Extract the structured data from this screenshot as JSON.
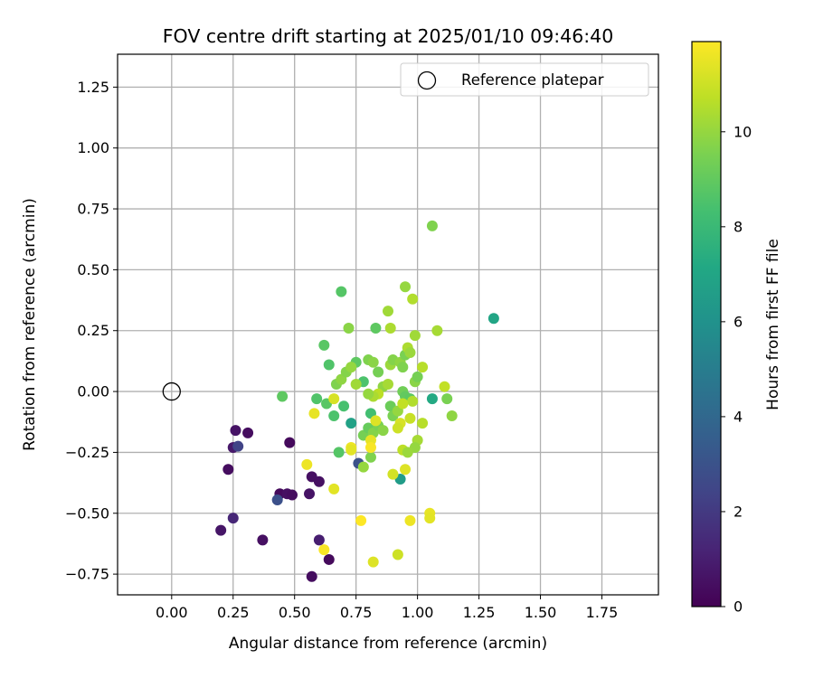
{
  "chart_data": {
    "type": "scatter",
    "title": "FOV centre drift starting at 2025/01/10 09:46:40",
    "xlabel": "Angular distance from reference (arcmin)",
    "ylabel": "Rotation from reference (arcmin)",
    "xlim": [
      -0.22,
      1.98
    ],
    "ylim": [
      -0.835,
      1.385
    ],
    "x_ticks": [
      0.0,
      0.25,
      0.5,
      0.75,
      1.0,
      1.25,
      1.5,
      1.75
    ],
    "x_tick_labels": [
      "0.00",
      "0.25",
      "0.50",
      "0.75",
      "1.00",
      "1.25",
      "1.50",
      "1.75"
    ],
    "y_ticks": [
      -0.75,
      -0.5,
      -0.25,
      0.0,
      0.25,
      0.5,
      0.75,
      1.0,
      1.25
    ],
    "y_tick_labels": [
      "−0.75",
      "−0.50",
      "−0.25",
      "0.00",
      "0.25",
      "0.50",
      "0.75",
      "1.00",
      "1.25"
    ],
    "grid": true,
    "legend_position": "top-right",
    "legend": [
      {
        "label": "Reference platepar",
        "marker": "open-circle"
      }
    ],
    "reference_point": {
      "x": 0.0,
      "y": 0.0
    },
    "colorbar": {
      "label": "Hours from first FF file",
      "colormap": "viridis",
      "range": [
        0,
        11.9
      ],
      "ticks": [
        0,
        2,
        4,
        6,
        8,
        10
      ],
      "tick_labels": [
        "0",
        "2",
        "4",
        "6",
        "8",
        "10"
      ]
    },
    "points": [
      {
        "x": 0.57,
        "y": -0.76,
        "c": 0.4
      },
      {
        "x": 0.64,
        "y": -0.69,
        "c": 0.3
      },
      {
        "x": 0.2,
        "y": -0.57,
        "c": 0.7
      },
      {
        "x": 0.37,
        "y": -0.61,
        "c": 0.5
      },
      {
        "x": 0.6,
        "y": -0.61,
        "c": 1.0
      },
      {
        "x": 0.25,
        "y": -0.52,
        "c": 1.3
      },
      {
        "x": 0.23,
        "y": -0.32,
        "c": 0.4
      },
      {
        "x": 0.25,
        "y": -0.23,
        "c": 0.8
      },
      {
        "x": 0.27,
        "y": -0.225,
        "c": 2.4
      },
      {
        "x": 0.26,
        "y": -0.16,
        "c": 0.6
      },
      {
        "x": 0.31,
        "y": -0.17,
        "c": 0.4
      },
      {
        "x": 0.48,
        "y": -0.21,
        "c": 0.3
      },
      {
        "x": 0.44,
        "y": -0.42,
        "c": 0.3
      },
      {
        "x": 0.47,
        "y": -0.42,
        "c": 0.5
      },
      {
        "x": 0.49,
        "y": -0.425,
        "c": 0.4
      },
      {
        "x": 0.43,
        "y": -0.445,
        "c": 2.9
      },
      {
        "x": 0.56,
        "y": -0.42,
        "c": 0.6
      },
      {
        "x": 0.57,
        "y": -0.35,
        "c": 0.5
      },
      {
        "x": 0.6,
        "y": -0.37,
        "c": 0.5
      },
      {
        "x": 0.76,
        "y": -0.295,
        "c": 3.0
      },
      {
        "x": 0.93,
        "y": -0.36,
        "c": 6.5
      },
      {
        "x": 0.73,
        "y": -0.13,
        "c": 6.8
      },
      {
        "x": 1.06,
        "y": -0.03,
        "c": 7.2
      },
      {
        "x": 1.31,
        "y": 0.3,
        "c": 7.0
      },
      {
        "x": 0.45,
        "y": -0.02,
        "c": 8.9
      },
      {
        "x": 0.59,
        "y": -0.03,
        "c": 8.6
      },
      {
        "x": 0.63,
        "y": -0.05,
        "c": 8.8
      },
      {
        "x": 0.66,
        "y": -0.1,
        "c": 8.5
      },
      {
        "x": 0.7,
        "y": -0.06,
        "c": 8.4
      },
      {
        "x": 0.68,
        "y": -0.25,
        "c": 8.7
      },
      {
        "x": 0.62,
        "y": 0.19,
        "c": 8.8
      },
      {
        "x": 0.64,
        "y": 0.11,
        "c": 8.6
      },
      {
        "x": 0.69,
        "y": 0.41,
        "c": 8.7
      },
      {
        "x": 0.75,
        "y": 0.12,
        "c": 8.9
      },
      {
        "x": 0.78,
        "y": 0.04,
        "c": 8.5
      },
      {
        "x": 0.81,
        "y": -0.09,
        "c": 8.3
      },
      {
        "x": 0.83,
        "y": 0.26,
        "c": 8.9
      },
      {
        "x": 0.81,
        "y": -0.27,
        "c": 9.6
      },
      {
        "x": 0.78,
        "y": -0.31,
        "c": 10.0
      },
      {
        "x": 0.72,
        "y": 0.26,
        "c": 9.8
      },
      {
        "x": 0.67,
        "y": 0.03,
        "c": 9.6
      },
      {
        "x": 0.69,
        "y": 0.05,
        "c": 9.9
      },
      {
        "x": 0.71,
        "y": 0.08,
        "c": 9.7
      },
      {
        "x": 0.73,
        "y": 0.1,
        "c": 10.0
      },
      {
        "x": 0.75,
        "y": 0.03,
        "c": 10.2
      },
      {
        "x": 0.78,
        "y": -0.18,
        "c": 9.4
      },
      {
        "x": 0.8,
        "y": -0.15,
        "c": 9.1
      },
      {
        "x": 0.82,
        "y": -0.17,
        "c": 9.7
      },
      {
        "x": 0.84,
        "y": -0.14,
        "c": 9.5
      },
      {
        "x": 0.86,
        "y": -0.16,
        "c": 9.8
      },
      {
        "x": 0.8,
        "y": 0.13,
        "c": 9.6
      },
      {
        "x": 0.82,
        "y": 0.12,
        "c": 9.8
      },
      {
        "x": 0.84,
        "y": 0.08,
        "c": 9.4
      },
      {
        "x": 0.86,
        "y": 0.02,
        "c": 9.9
      },
      {
        "x": 0.88,
        "y": 0.03,
        "c": 10.3
      },
      {
        "x": 0.89,
        "y": -0.06,
        "c": 9.2
      },
      {
        "x": 0.9,
        "y": -0.1,
        "c": 9.5
      },
      {
        "x": 0.92,
        "y": -0.08,
        "c": 10.0
      },
      {
        "x": 0.94,
        "y": 0.0,
        "c": 9.3
      },
      {
        "x": 0.95,
        "y": -0.02,
        "c": 9.0
      },
      {
        "x": 0.97,
        "y": -0.03,
        "c": 8.9
      },
      {
        "x": 0.98,
        "y": -0.04,
        "c": 10.5
      },
      {
        "x": 0.99,
        "y": 0.04,
        "c": 9.8
      },
      {
        "x": 1.0,
        "y": 0.06,
        "c": 9.4
      },
      {
        "x": 0.89,
        "y": 0.11,
        "c": 10.1
      },
      {
        "x": 0.9,
        "y": 0.13,
        "c": 9.7
      },
      {
        "x": 0.93,
        "y": 0.12,
        "c": 9.9
      },
      {
        "x": 0.94,
        "y": 0.1,
        "c": 9.6
      },
      {
        "x": 0.95,
        "y": 0.15,
        "c": 9.5
      },
      {
        "x": 0.96,
        "y": 0.18,
        "c": 10.4
      },
      {
        "x": 0.97,
        "y": 0.16,
        "c": 10.1
      },
      {
        "x": 1.02,
        "y": 0.1,
        "c": 10.6
      },
      {
        "x": 0.88,
        "y": 0.33,
        "c": 10.2
      },
      {
        "x": 0.89,
        "y": 0.26,
        "c": 10.4
      },
      {
        "x": 0.95,
        "y": 0.43,
        "c": 10.0
      },
      {
        "x": 0.98,
        "y": 0.38,
        "c": 10.5
      },
      {
        "x": 0.99,
        "y": 0.23,
        "c": 10.2
      },
      {
        "x": 1.08,
        "y": 0.25,
        "c": 10.3
      },
      {
        "x": 1.06,
        "y": 0.68,
        "c": 9.6
      },
      {
        "x": 1.11,
        "y": 0.02,
        "c": 10.8
      },
      {
        "x": 1.12,
        "y": -0.03,
        "c": 9.5
      },
      {
        "x": 1.14,
        "y": -0.1,
        "c": 9.9
      },
      {
        "x": 1.0,
        "y": -0.2,
        "c": 10.3
      },
      {
        "x": 0.99,
        "y": -0.23,
        "c": 10.0
      },
      {
        "x": 0.94,
        "y": -0.24,
        "c": 10.7
      },
      {
        "x": 0.96,
        "y": -0.25,
        "c": 10.1
      },
      {
        "x": 0.97,
        "y": -0.11,
        "c": 10.9
      },
      {
        "x": 1.02,
        "y": -0.13,
        "c": 10.6
      },
      {
        "x": 0.93,
        "y": -0.13,
        "c": 11.2
      },
      {
        "x": 0.92,
        "y": -0.15,
        "c": 11.0
      },
      {
        "x": 0.94,
        "y": -0.05,
        "c": 10.8
      },
      {
        "x": 0.83,
        "y": -0.12,
        "c": 11.3
      },
      {
        "x": 0.84,
        "y": -0.01,
        "c": 10.7
      },
      {
        "x": 0.82,
        "y": -0.02,
        "c": 10.4
      },
      {
        "x": 0.8,
        "y": -0.01,
        "c": 10.0
      },
      {
        "x": 0.81,
        "y": -0.2,
        "c": 11.5
      },
      {
        "x": 0.81,
        "y": -0.23,
        "c": 11.8
      },
      {
        "x": 0.73,
        "y": -0.23,
        "c": 11.6
      },
      {
        "x": 0.73,
        "y": -0.24,
        "c": 11.4
      },
      {
        "x": 0.66,
        "y": -0.03,
        "c": 11.2
      },
      {
        "x": 0.58,
        "y": -0.09,
        "c": 11.5
      },
      {
        "x": 0.55,
        "y": -0.3,
        "c": 11.6
      },
      {
        "x": 0.66,
        "y": -0.4,
        "c": 11.4
      },
      {
        "x": 0.9,
        "y": -0.34,
        "c": 11.1
      },
      {
        "x": 0.95,
        "y": -0.32,
        "c": 11.3
      },
      {
        "x": 0.77,
        "y": -0.53,
        "c": 11.9
      },
      {
        "x": 0.97,
        "y": -0.53,
        "c": 11.6
      },
      {
        "x": 1.05,
        "y": -0.5,
        "c": 11.5
      },
      {
        "x": 1.05,
        "y": -0.52,
        "c": 11.4
      },
      {
        "x": 0.62,
        "y": -0.65,
        "c": 11.8
      },
      {
        "x": 0.92,
        "y": -0.67,
        "c": 11.0
      },
      {
        "x": 0.82,
        "y": -0.7,
        "c": 11.3
      }
    ]
  }
}
